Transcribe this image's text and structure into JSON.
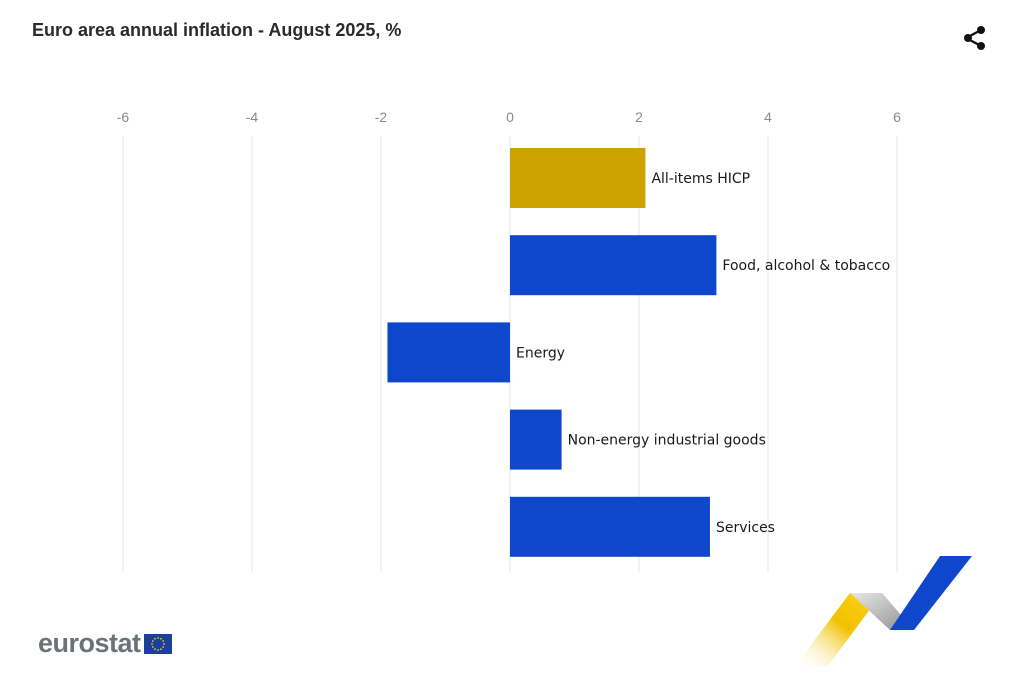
{
  "header": {
    "title": "Euro area annual inflation - August 2025, %",
    "share_icon": "share-icon"
  },
  "chart_data": {
    "type": "bar",
    "orientation": "horizontal",
    "title": "Euro area annual inflation - August 2025, %",
    "xlim": [
      -6,
      7
    ],
    "x_ticks": [
      -6,
      -4,
      -2,
      0,
      2,
      4,
      6
    ],
    "x_axis_position": "top",
    "grid": true,
    "categories": [
      "All-items HICP",
      "Food, alcohol & tobacco",
      "Energy",
      "Non-energy industrial goods",
      "Services"
    ],
    "values": [
      2.1,
      3.2,
      -1.9,
      0.8,
      3.1
    ],
    "colors": [
      "#cca300",
      "#0e47cb",
      "#0e47cb",
      "#0e47cb",
      "#0e47cb"
    ]
  },
  "footer": {
    "logo_text": "eurostat",
    "logo_flag": "eu-flag-icon"
  },
  "colors": {
    "highlight": "#cca300",
    "bar": "#0e47cb",
    "grid": "#dbe7f0",
    "tick_text": "#8a8a8a"
  }
}
